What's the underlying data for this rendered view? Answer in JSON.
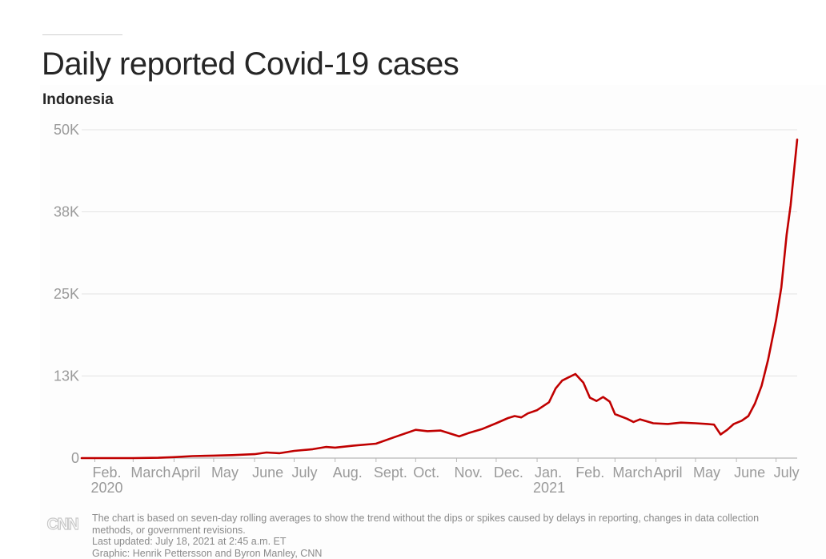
{
  "header": {
    "title": "Daily reported Covid-19 cases",
    "subtitle": "Indonesia"
  },
  "footer": {
    "note_line1": "The chart is based on seven-day rolling averages to show the trend without the dips or spikes caused by delays in reporting, changes in data collection",
    "note_line2": "methods, or government revisions.",
    "updated": "Last updated: July 18, 2021 at 2:45 a.m. ET",
    "credit": "Graphic: Henrik Pettersson and Byron Manley, CNN",
    "logo": "CNN"
  },
  "colors": {
    "line": "#c00000",
    "grid": "#e3e3e3",
    "tick_text": "#9a9a9a",
    "logo": "#c8c8c8"
  },
  "chart_data": {
    "type": "line",
    "title": "Daily reported Covid-19 cases",
    "subtitle": "Indonesia",
    "x_axis": {
      "type": "date",
      "range": [
        "2020-01-22",
        "2021-07-17"
      ],
      "ticks": [
        {
          "date": "2020-02-01",
          "label": "Feb.",
          "year_label": "2020"
        },
        {
          "date": "2020-03-01",
          "label": "March"
        },
        {
          "date": "2020-04-01",
          "label": "April"
        },
        {
          "date": "2020-05-01",
          "label": "May"
        },
        {
          "date": "2020-06-01",
          "label": "June"
        },
        {
          "date": "2020-07-01",
          "label": "July"
        },
        {
          "date": "2020-08-01",
          "label": "Aug."
        },
        {
          "date": "2020-09-01",
          "label": "Sept."
        },
        {
          "date": "2020-10-01",
          "label": "Oct."
        },
        {
          "date": "2020-11-01",
          "label": "Nov."
        },
        {
          "date": "2020-12-01",
          "label": "Dec."
        },
        {
          "date": "2021-01-01",
          "label": "Jan.",
          "year_label": "2021"
        },
        {
          "date": "2021-02-01",
          "label": "Feb."
        },
        {
          "date": "2021-03-01",
          "label": "March"
        },
        {
          "date": "2021-04-01",
          "label": "April"
        },
        {
          "date": "2021-05-01",
          "label": "May"
        },
        {
          "date": "2021-06-01",
          "label": "June"
        },
        {
          "date": "2021-07-01",
          "label": "July"
        }
      ]
    },
    "y_axis": {
      "range": [
        0,
        50000
      ],
      "grid": true,
      "ticks": [
        {
          "value": 0,
          "label": "0"
        },
        {
          "value": 12500,
          "label": "13K"
        },
        {
          "value": 25000,
          "label": "25K"
        },
        {
          "value": 37500,
          "label": "38K"
        },
        {
          "value": 50000,
          "label": "50K"
        }
      ]
    },
    "series": [
      {
        "points": [
          [
            "2020-01-22",
            0
          ],
          [
            "2020-03-01",
            0
          ],
          [
            "2020-03-20",
            50
          ],
          [
            "2020-04-01",
            150
          ],
          [
            "2020-04-15",
            300
          ],
          [
            "2020-05-01",
            380
          ],
          [
            "2020-05-15",
            450
          ],
          [
            "2020-06-01",
            600
          ],
          [
            "2020-06-10",
            850
          ],
          [
            "2020-06-20",
            750
          ],
          [
            "2020-07-01",
            1100
          ],
          [
            "2020-07-15",
            1350
          ],
          [
            "2020-07-25",
            1700
          ],
          [
            "2020-08-01",
            1600
          ],
          [
            "2020-08-15",
            1900
          ],
          [
            "2020-09-01",
            2200
          ],
          [
            "2020-09-15",
            3200
          ],
          [
            "2020-10-01",
            4300
          ],
          [
            "2020-10-10",
            4100
          ],
          [
            "2020-10-20",
            4200
          ],
          [
            "2020-10-28",
            3700
          ],
          [
            "2020-11-03",
            3300
          ],
          [
            "2020-11-10",
            3800
          ],
          [
            "2020-11-20",
            4400
          ],
          [
            "2020-12-01",
            5300
          ],
          [
            "2020-12-10",
            6100
          ],
          [
            "2020-12-15",
            6400
          ],
          [
            "2020-12-20",
            6200
          ],
          [
            "2020-12-25",
            6800
          ],
          [
            "2021-01-01",
            7300
          ],
          [
            "2021-01-10",
            8500
          ],
          [
            "2021-01-15",
            10600
          ],
          [
            "2021-01-20",
            11800
          ],
          [
            "2021-01-25",
            12300
          ],
          [
            "2021-01-30",
            12800
          ],
          [
            "2021-02-05",
            11500
          ],
          [
            "2021-02-10",
            9200
          ],
          [
            "2021-02-15",
            8700
          ],
          [
            "2021-02-20",
            9300
          ],
          [
            "2021-02-25",
            8600
          ],
          [
            "2021-03-01",
            6700
          ],
          [
            "2021-03-10",
            6000
          ],
          [
            "2021-03-15",
            5500
          ],
          [
            "2021-03-20",
            5900
          ],
          [
            "2021-03-30",
            5300
          ],
          [
            "2021-04-10",
            5200
          ],
          [
            "2021-04-20",
            5400
          ],
          [
            "2021-05-01",
            5300
          ],
          [
            "2021-05-10",
            5200
          ],
          [
            "2021-05-15",
            5100
          ],
          [
            "2021-05-20",
            3600
          ],
          [
            "2021-05-25",
            4300
          ],
          [
            "2021-05-30",
            5200
          ],
          [
            "2021-06-05",
            5700
          ],
          [
            "2021-06-10",
            6400
          ],
          [
            "2021-06-15",
            8300
          ],
          [
            "2021-06-20",
            11000
          ],
          [
            "2021-06-25",
            15000
          ],
          [
            "2021-07-01",
            21000
          ],
          [
            "2021-07-05",
            26000
          ],
          [
            "2021-07-09",
            34000
          ],
          [
            "2021-07-12",
            38500
          ],
          [
            "2021-07-15",
            44500
          ],
          [
            "2021-07-17",
            48500
          ]
        ]
      }
    ]
  }
}
